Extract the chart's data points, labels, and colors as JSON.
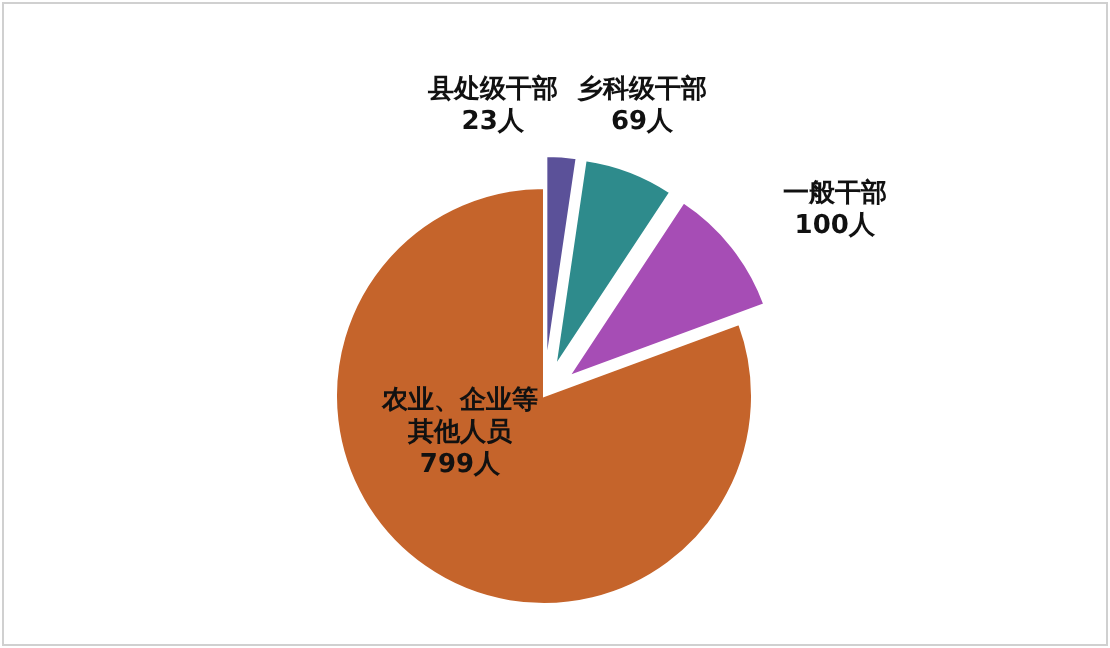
{
  "chart_data": {
    "type": "pie",
    "categories": [
      "县处级干部",
      "乡科级干部",
      "一般干部",
      "农业、企业等其他人员"
    ],
    "values": [
      23,
      69,
      100,
      799
    ],
    "colors": [
      "#5b5199",
      "#2e8b8c",
      "#a64db5",
      "#c5642b"
    ],
    "value_labels": [
      "23人",
      "69人",
      "100人",
      "799人"
    ]
  }
}
